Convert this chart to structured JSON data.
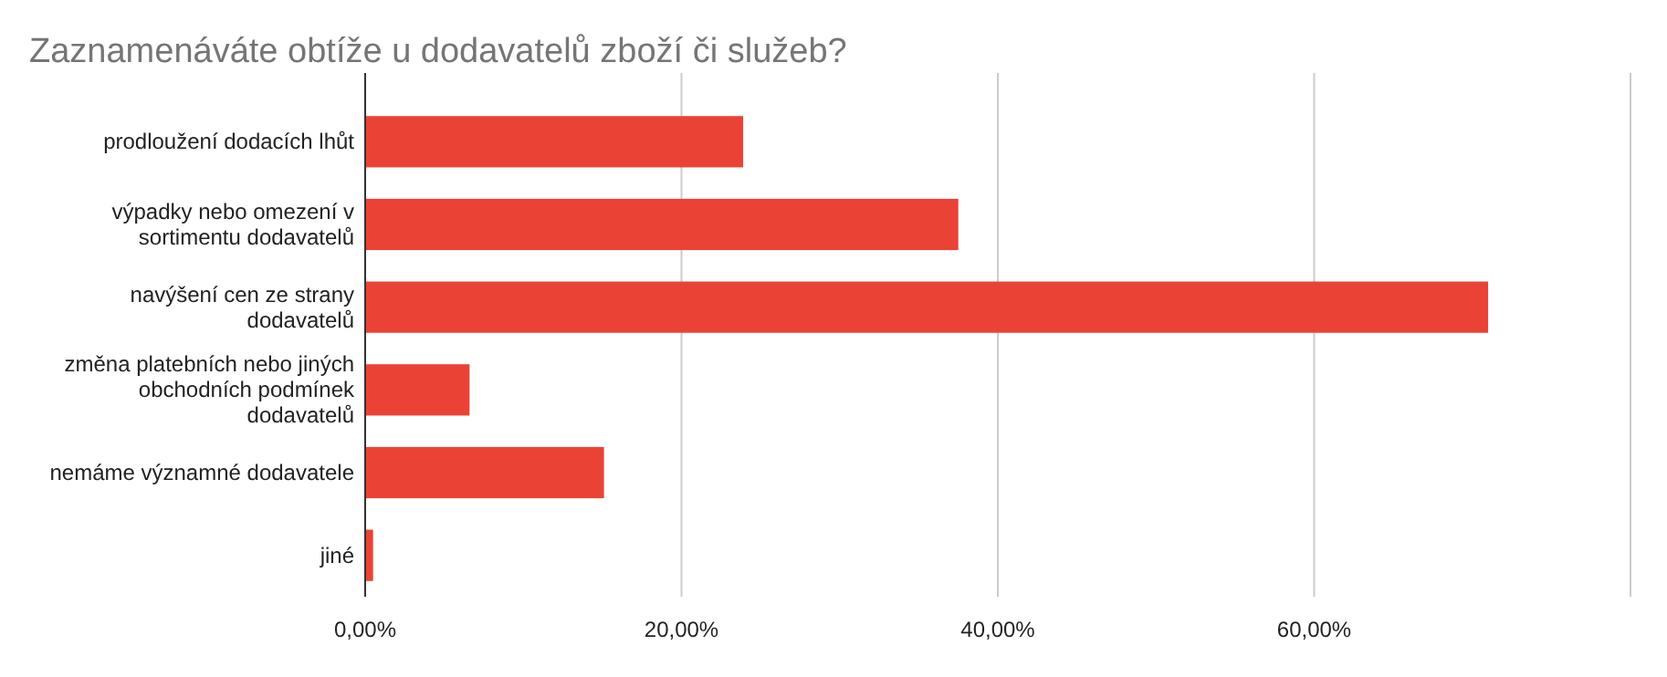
{
  "chart_data": {
    "type": "bar",
    "orientation": "horizontal",
    "title": "Zaznamenáváte obtíže u dodavatelů zboží či služeb?",
    "categories": [
      "prodloužení dodacích lhůt",
      "výpadky nebo omezení v sortimentu dodavatelů",
      "navýšení cen ze strany dodavatelů",
      "změna platebních nebo jiných obchodních podmínek dodavatelů",
      "nemáme významné dodavatele",
      "jiné"
    ],
    "values": [
      23.9,
      37.5,
      71.0,
      6.6,
      15.1,
      0.5
    ],
    "color": "#ea4335",
    "xlim": [
      0,
      80
    ],
    "xticks": [
      {
        "value": 0,
        "label": "0,00%"
      },
      {
        "value": 20,
        "label": "20,00%"
      },
      {
        "value": 40,
        "label": "40,00%"
      },
      {
        "value": 60,
        "label": "60,00%"
      },
      {
        "value": 80,
        "label": null
      }
    ],
    "grid": "x"
  }
}
